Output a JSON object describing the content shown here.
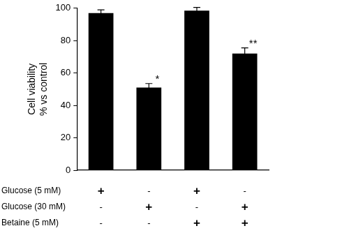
{
  "chart_data": {
    "type": "bar",
    "y_label": [
      "Cell viability",
      "% vs control"
    ],
    "categories": [
      null,
      null,
      null,
      null
    ],
    "values": [
      97,
      51,
      98.5,
      72
    ],
    "errors": [
      2,
      2.5,
      2,
      3.5
    ],
    "significance": [
      null,
      "*",
      null,
      "**"
    ],
    "color": "#000000",
    "ylim": [
      0,
      100
    ],
    "yticks": [
      0,
      20,
      40,
      60,
      80,
      100
    ],
    "grid": false,
    "treatments": [
      {
        "label": "Glucose (5 mM)",
        "marks": [
          "+",
          "-",
          "+",
          "-"
        ]
      },
      {
        "label": "Glucose (30 mM)",
        "marks": [
          "-",
          "+",
          "-",
          "+"
        ]
      },
      {
        "label": "Betaine (5 mM)",
        "marks": [
          "-",
          "-",
          "+",
          "+"
        ]
      }
    ]
  }
}
